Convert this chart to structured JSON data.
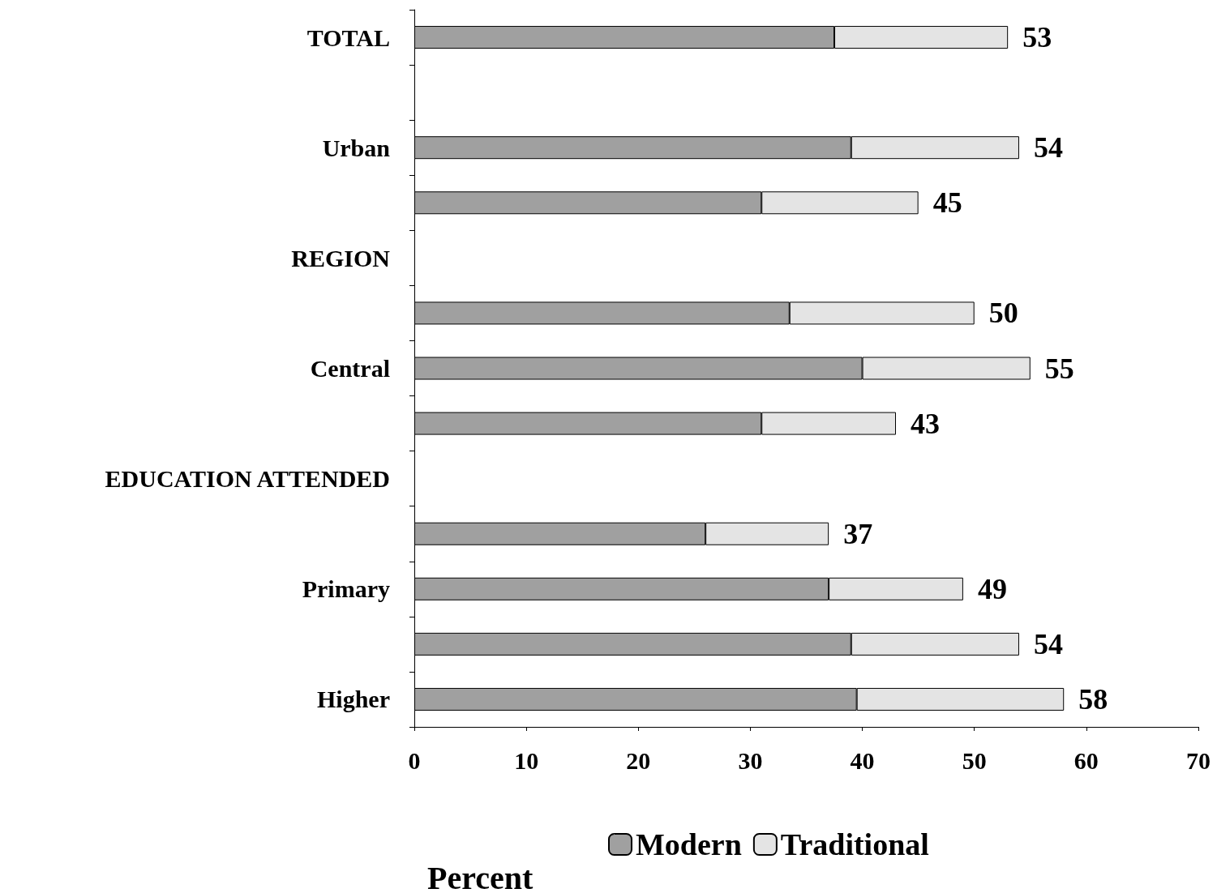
{
  "chart_data": {
    "type": "bar",
    "orientation": "horizontal",
    "stacked": true,
    "categories": [
      "TOTAL",
      null,
      "Urban",
      null,
      "REGION",
      null,
      "Central",
      null,
      "EDUCATION ATTENDED",
      null,
      "Primary",
      null,
      "Higher"
    ],
    "series": [
      {
        "name": "Modern",
        "color": "#a0a0a0",
        "values": [
          37.5,
          null,
          39,
          31,
          null,
          33.5,
          40,
          31,
          null,
          26,
          37,
          39,
          39.5
        ]
      },
      {
        "name": "Traditional",
        "color": "#e4e4e4",
        "values": [
          15.5,
          null,
          15,
          14,
          null,
          16.5,
          15,
          12,
          null,
          11,
          12,
          15,
          18.5
        ]
      }
    ],
    "totals": [
      "53",
      null,
      "54",
      "45",
      null,
      "50",
      "55",
      "43",
      null,
      "37",
      "49",
      "54",
      "58"
    ],
    "xlabel": "Percent",
    "xlim": [
      0,
      70
    ],
    "xticks": [
      0,
      10,
      20,
      30,
      40,
      50,
      60,
      70
    ],
    "grid": false,
    "legend": "bottom"
  }
}
